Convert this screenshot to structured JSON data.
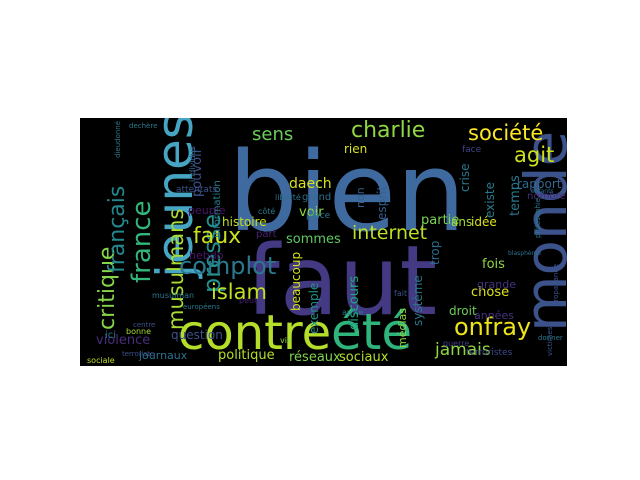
{
  "wordcloud": {
    "background": "#000000",
    "words": [
      {
        "text": "bien",
        "color": "#3f6aa0"
      },
      {
        "text": "faut",
        "color": "#443a83"
      },
      {
        "text": "jeunes",
        "color": "#46a5c2"
      },
      {
        "text": "contre",
        "color": "#b5de2b"
      },
      {
        "text": "été",
        "color": "#2fb47c"
      },
      {
        "text": "monde",
        "color": "#3b528b"
      },
      {
        "text": "critique",
        "color": "#86d549"
      },
      {
        "text": "français",
        "color": "#24878e"
      },
      {
        "text": "france",
        "color": "#32b67a"
      },
      {
        "text": "musulmans",
        "color": "#a8db34"
      },
      {
        "text": "presse",
        "color": "#21918c"
      },
      {
        "text": "complot",
        "color": "#2a788e"
      },
      {
        "text": "faux",
        "color": "#c8e020"
      },
      {
        "text": "islam",
        "color": "#c2df23"
      },
      {
        "text": "sens",
        "color": "#6ccd5a"
      },
      {
        "text": "charlie",
        "color": "#8fd744"
      },
      {
        "text": "société",
        "color": "#fde725"
      },
      {
        "text": "agit",
        "color": "#cde11d"
      },
      {
        "text": "internet",
        "color": "#bddf26"
      },
      {
        "text": "onfray",
        "color": "#eae51a"
      },
      {
        "text": "jamais",
        "color": "#8fd744"
      },
      {
        "text": "sociaux",
        "color": "#b5de2b"
      },
      {
        "text": "réseaux",
        "color": "#7fd34e"
      },
      {
        "text": "médias",
        "color": "#8fd744"
      },
      {
        "text": "politique",
        "color": "#b5de2b"
      },
      {
        "text": "journaux",
        "color": "#2c718e"
      },
      {
        "text": "violence",
        "color": "#472d7b"
      },
      {
        "text": "question",
        "color": "#3b528b"
      },
      {
        "text": "histoire",
        "color": "#c2df23"
      },
      {
        "text": "beaucoup",
        "color": "#d2e21b"
      },
      {
        "text": "exemple",
        "color": "#21918c"
      },
      {
        "text": "discours",
        "color": "#22a884"
      },
      {
        "text": "sommes",
        "color": "#5ec962"
      },
      {
        "text": "voir",
        "color": "#8fd744"
      },
      {
        "text": "grand",
        "color": "#2e6e8e"
      },
      {
        "text": "daech",
        "color": "#d8e219"
      },
      {
        "text": "rien",
        "color": "#d8e219"
      },
      {
        "text": "non",
        "color": "#355f8d"
      },
      {
        "text": "esprit",
        "color": "#355f8d"
      },
      {
        "text": "crise",
        "color": "#2a788e"
      },
      {
        "text": "existe",
        "color": "#2a788e"
      },
      {
        "text": "partie",
        "color": "#7ad151"
      },
      {
        "text": "système",
        "color": "#2a788e"
      },
      {
        "text": "chose",
        "color": "#dde318"
      },
      {
        "text": "fois",
        "color": "#8fd744"
      },
      {
        "text": "trop",
        "color": "#2e6e8e"
      },
      {
        "text": "ans",
        "color": "#a5db36"
      },
      {
        "text": "droit",
        "color": "#6ccd5a"
      },
      {
        "text": "idée",
        "color": "#d8e219"
      },
      {
        "text": "années",
        "color": "#46337f"
      },
      {
        "text": "grande",
        "color": "#46337f"
      },
      {
        "text": "temps",
        "color": "#2a788e"
      },
      {
        "text": "nombre",
        "color": "#472c7a"
      },
      {
        "text": "rapport",
        "color": "#31688e"
      },
      {
        "text": "hebdo",
        "color": "#481769"
      },
      {
        "text": "peuple",
        "color": "#481769"
      },
      {
        "text": "information",
        "color": "#2a788e"
      },
      {
        "text": "pouvoir",
        "color": "#3b528b"
      },
      {
        "text": "face",
        "color": "#414487"
      },
      {
        "text": "terroristes",
        "color": "#3e4989"
      },
      {
        "text": "guerre",
        "color": "#433e85"
      },
      {
        "text": "attentats",
        "color": "#3b528b"
      },
      {
        "text": "individus",
        "color": "#31688e"
      },
      {
        "text": "liberté",
        "color": "#2c728e"
      },
      {
        "text": "enfants",
        "color": "#2d708e"
      },
      {
        "text": "dieudonné",
        "color": "#2a788e"
      },
      {
        "text": "terroriste",
        "color": "#3b528b"
      },
      {
        "text": "victimes",
        "color": "#3b528b"
      },
      {
        "text": "propagande",
        "color": "#3b528b"
      },
      {
        "text": "philosophie",
        "color": "#2a788e"
      },
      {
        "text": "sociale",
        "color": "#c2df23"
      },
      {
        "text": "bonne",
        "color": "#a8db34"
      },
      {
        "text": "place",
        "color": "#2a788e"
      },
      {
        "text": "part",
        "color": "#482173"
      },
      {
        "text": "donner",
        "color": "#2a788e"
      },
      {
        "text": "vie",
        "color": "#8fd744"
      },
      {
        "text": "centre",
        "color": "#3b528b"
      },
      {
        "text": "blasphème",
        "color": "#2c728e"
      },
      {
        "text": "dechère",
        "color": "#2a788e"
      },
      {
        "text": "européens",
        "color": "#2a788e"
      },
      {
        "text": "ici",
        "color": "#2a788e"
      },
      {
        "text": "côté",
        "color": "#2a788e"
      },
      {
        "text": "autre",
        "color": "#2a788e"
      },
      {
        "text": "musulman",
        "color": "#2a788e"
      },
      {
        "text": "peut",
        "color": "#482173"
      },
      {
        "text": "fait",
        "color": "#3b528b"
      }
    ]
  }
}
